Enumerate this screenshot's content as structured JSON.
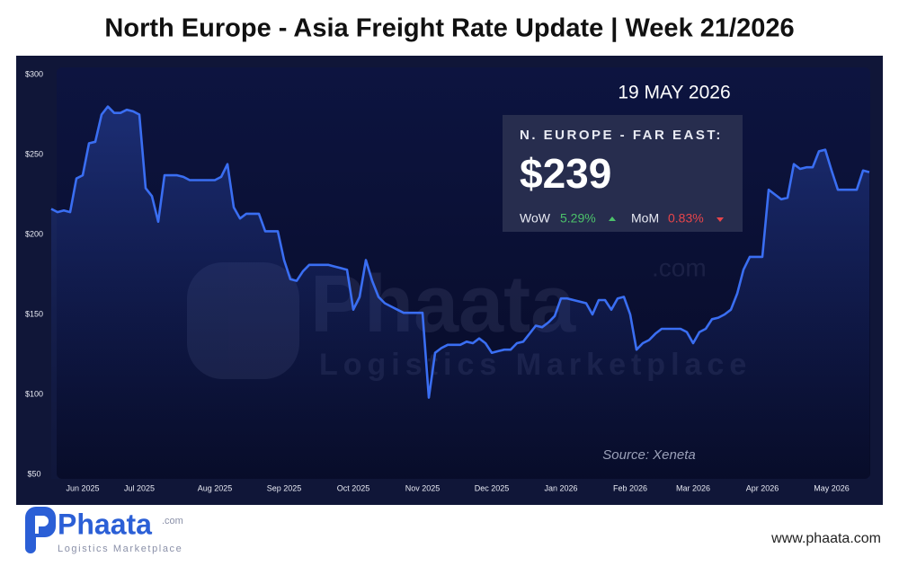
{
  "header": {
    "title": "North Europe - Asia Freight Rate Update | Week 21/2026"
  },
  "card": {
    "date": "19 MAY 2026",
    "route": "N. EUROPE - FAR EAST:",
    "price": "$239",
    "wow_label": "WoW",
    "wow": "5.29%",
    "mom_label": "MoM",
    "mom": "0.83%"
  },
  "chart_data": {
    "type": "line",
    "color": "#3a6ef2",
    "grid": false,
    "source": "Source: Xeneta",
    "ylim": [
      50,
      300
    ],
    "yticks": [
      {
        "value": 50,
        "label": "$50"
      },
      {
        "value": 100,
        "label": "$100"
      },
      {
        "value": 150,
        "label": "$150"
      },
      {
        "value": 200,
        "label": "$200"
      },
      {
        "value": 250,
        "label": "$250"
      },
      {
        "value": 300,
        "label": "$300"
      }
    ],
    "categories": [
      null,
      null,
      null,
      null,
      null,
      "Jun 2025",
      null,
      null,
      null,
      null,
      null,
      null,
      null,
      null,
      "Jul 2025",
      null,
      null,
      null,
      null,
      null,
      null,
      null,
      null,
      null,
      null,
      null,
      "Aug 2025",
      null,
      null,
      null,
      null,
      null,
      null,
      null,
      null,
      null,
      null,
      "Sep 2025",
      null,
      null,
      null,
      null,
      null,
      null,
      null,
      null,
      null,
      null,
      "Oct 2025",
      null,
      null,
      null,
      null,
      null,
      null,
      null,
      null,
      null,
      null,
      "Nov 2025",
      null,
      null,
      null,
      null,
      null,
      null,
      null,
      null,
      null,
      null,
      "Dec 2025",
      null,
      null,
      null,
      null,
      null,
      null,
      null,
      null,
      null,
      null,
      "Jan 2026",
      null,
      null,
      null,
      null,
      null,
      null,
      null,
      null,
      null,
      null,
      "Feb 2026",
      null,
      null,
      null,
      null,
      null,
      null,
      null,
      null,
      null,
      "Mar 2026",
      null,
      null,
      null,
      null,
      null,
      null,
      null,
      null,
      null,
      null,
      "Apr 2026",
      null,
      null,
      null,
      null,
      null,
      null,
      null,
      null,
      null,
      null,
      "May 2026",
      null,
      null,
      null,
      null,
      null,
      null
    ],
    "values": [
      216,
      214,
      215,
      214,
      235,
      237,
      257,
      258,
      275,
      280,
      276,
      276,
      278,
      277,
      275,
      229,
      224,
      208,
      237,
      237,
      237,
      236,
      234,
      234,
      234,
      234,
      234,
      236,
      244,
      217,
      210,
      213,
      213,
      213,
      202,
      202,
      202,
      184,
      172,
      171,
      177,
      181,
      181,
      181,
      181,
      180,
      179,
      178,
      153,
      161,
      184,
      171,
      161,
      157,
      155,
      153,
      151,
      151,
      151,
      151,
      98,
      126,
      129,
      131,
      131,
      131,
      133,
      132,
      135,
      132,
      126,
      127,
      128,
      128,
      132,
      133,
      138,
      143,
      142,
      145,
      149,
      160,
      160,
      159,
      158,
      157,
      150,
      159,
      159,
      153,
      160,
      161,
      150,
      128,
      132,
      134,
      138,
      141,
      141,
      141,
      141,
      139,
      132,
      139,
      141,
      147,
      148,
      150,
      153,
      163,
      178,
      186,
      186,
      186,
      228,
      225,
      222,
      223,
      244,
      241,
      242,
      242,
      252,
      253,
      240,
      228,
      228,
      228,
      228,
      240,
      239
    ]
  },
  "logo": {
    "name": "Phaata",
    "domain": ".com",
    "tagline": "Logistics Marketplace",
    "url": "www.phaata.com"
  }
}
